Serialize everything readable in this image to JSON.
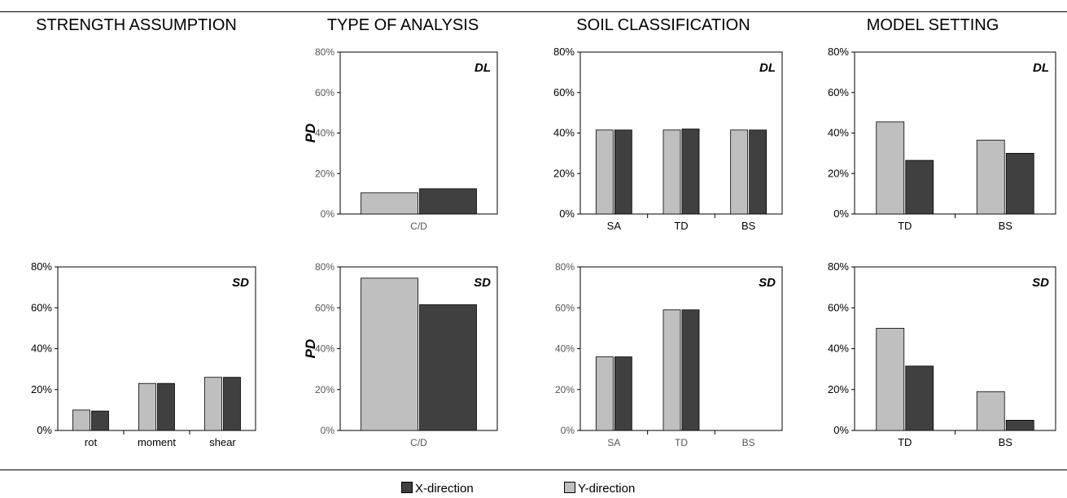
{
  "headers": [
    "STRENGTH ASSUMPTION",
    "TYPE OF ANALYSIS",
    "SOIL CLASSIFICATION",
    "MODEL SETTING"
  ],
  "legend": [
    {
      "name": "X-direction",
      "color": "#404040"
    },
    {
      "name": "Y-direction",
      "color": "#bfbfbf"
    }
  ],
  "chart_data": [
    {
      "type": "bar",
      "panel": "DL",
      "categories": [
        "C/D"
      ],
      "ylim": [
        0,
        0.8
      ],
      "ylabel": "PD",
      "series": [
        {
          "name": "Y-direction",
          "values": [
            0.105
          ]
        },
        {
          "name": "X-direction",
          "values": [
            0.125
          ]
        }
      ]
    },
    {
      "type": "bar",
      "panel": "DL",
      "categories": [
        "SA",
        "TD",
        "BS"
      ],
      "ylim": [
        0,
        0.8
      ],
      "ylabel": "",
      "series": [
        {
          "name": "Y-direction",
          "values": [
            0.415,
            0.415,
            0.415
          ]
        },
        {
          "name": "X-direction",
          "values": [
            0.415,
            0.42,
            0.415
          ]
        }
      ]
    },
    {
      "type": "bar",
      "panel": "DL",
      "categories": [
        "TD",
        "BS"
      ],
      "ylim": [
        0,
        0.8
      ],
      "ylabel": "",
      "series": [
        {
          "name": "Y-direction",
          "values": [
            0.455,
            0.365
          ]
        },
        {
          "name": "X-direction",
          "values": [
            0.265,
            0.3
          ]
        }
      ]
    },
    {
      "type": "bar",
      "panel": "SD",
      "categories": [
        "rot",
        "moment",
        "shear"
      ],
      "ylim": [
        0,
        0.8
      ],
      "ylabel": "",
      "series": [
        {
          "name": "Y-direction",
          "values": [
            0.1,
            0.23,
            0.26
          ]
        },
        {
          "name": "X-direction",
          "values": [
            0.095,
            0.23,
            0.26
          ]
        }
      ]
    },
    {
      "type": "bar",
      "panel": "SD",
      "categories": [
        "C/D"
      ],
      "ylim": [
        0,
        0.8
      ],
      "ylabel": "PD",
      "series": [
        {
          "name": "Y-direction",
          "values": [
            0.745
          ]
        },
        {
          "name": "X-direction",
          "values": [
            0.615
          ]
        }
      ]
    },
    {
      "type": "bar",
      "panel": "SD",
      "categories": [
        "SA",
        "TD",
        "BS"
      ],
      "ylim": [
        0,
        0.8
      ],
      "ylabel": "",
      "series": [
        {
          "name": "Y-direction",
          "values": [
            0.36,
            0.59,
            0.0
          ]
        },
        {
          "name": "X-direction",
          "values": [
            0.36,
            0.59,
            0.0
          ]
        }
      ]
    },
    {
      "type": "bar",
      "panel": "SD",
      "categories": [
        "TD",
        "BS"
      ],
      "ylim": [
        0,
        0.8
      ],
      "ylabel": "",
      "series": [
        {
          "name": "Y-direction",
          "values": [
            0.5,
            0.19
          ]
        },
        {
          "name": "X-direction",
          "values": [
            0.315,
            0.05
          ]
        }
      ]
    }
  ]
}
